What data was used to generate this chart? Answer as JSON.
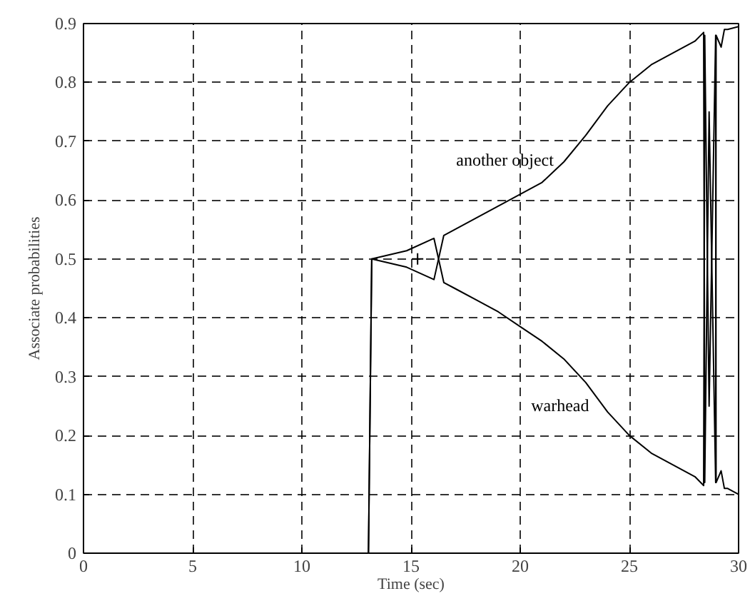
{
  "chart_data": {
    "type": "line",
    "xlabel": "Time (sec)",
    "ylabel": "Associate probabilities",
    "xlim": [
      0,
      30
    ],
    "ylim": [
      0,
      0.9
    ],
    "xticks": [
      0,
      5,
      10,
      15,
      20,
      25,
      30
    ],
    "yticks": [
      0,
      0.1,
      0.2,
      0.3,
      0.4,
      0.5,
      0.6,
      0.7,
      0.8,
      0.9
    ],
    "grid": true,
    "line_style": "solid",
    "series": [
      {
        "name": "another object",
        "color": "#000000",
        "x": [
          0,
          13.05,
          13.2,
          14.8,
          16.05,
          16.5,
          17,
          18,
          19,
          20,
          21,
          22,
          23,
          24,
          25,
          26,
          27,
          28,
          28.4,
          28.45,
          28.65,
          28.95,
          28.97,
          29.2,
          29.35,
          29.5,
          30
        ],
        "values": [
          0,
          0,
          0.5,
          0.486,
          0.465,
          0.54,
          0.55,
          0.57,
          0.59,
          0.61,
          0.63,
          0.665,
          0.71,
          0.76,
          0.8,
          0.83,
          0.85,
          0.87,
          0.885,
          0.12,
          0.75,
          0.12,
          0.88,
          0.86,
          0.89,
          0.89,
          0.895
        ]
      },
      {
        "name": "warhead",
        "color": "#000000",
        "x": [
          0,
          13.05,
          13.2,
          14.8,
          16.05,
          16.5,
          17,
          18,
          19,
          20,
          21,
          22,
          23,
          24,
          25,
          26,
          27,
          28,
          28.4,
          28.45,
          28.65,
          28.95,
          28.97,
          29.2,
          29.35,
          29.5,
          30
        ],
        "values": [
          0,
          0,
          0.5,
          0.514,
          0.535,
          0.46,
          0.45,
          0.43,
          0.41,
          0.385,
          0.36,
          0.33,
          0.29,
          0.24,
          0.2,
          0.17,
          0.15,
          0.13,
          0.115,
          0.88,
          0.25,
          0.88,
          0.12,
          0.14,
          0.11,
          0.11,
          0.1
        ]
      },
      {
        "type": "scatter",
        "marker": "cross",
        "color": "#000000",
        "x": [
          15.3
        ],
        "values": [
          0.5
        ]
      }
    ]
  }
}
